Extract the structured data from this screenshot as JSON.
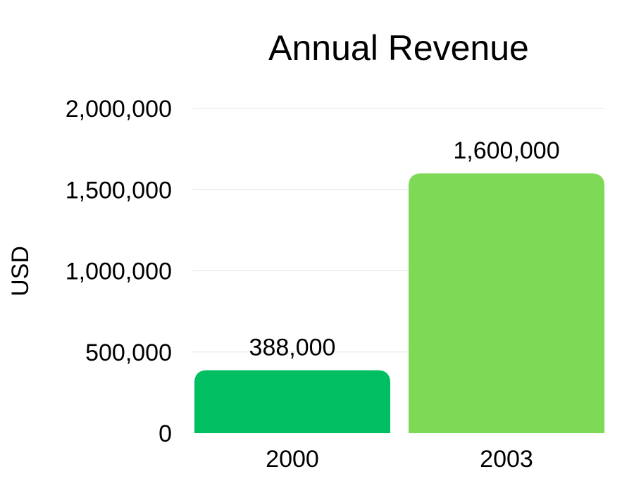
{
  "chart_data": {
    "type": "bar",
    "title": "Annual Revenue",
    "xlabel": "",
    "ylabel": "USD",
    "categories": [
      "2000",
      "2003"
    ],
    "values": [
      388000,
      1600000
    ],
    "data_labels": [
      "388,000",
      "1,600,000"
    ],
    "colors": [
      "#00bf63",
      "#7ed957"
    ],
    "ylim": [
      0,
      2000000
    ],
    "yticks": [
      0,
      500000,
      1000000,
      1500000,
      2000000
    ],
    "ytick_labels": [
      "0",
      "500,000",
      "1,000,000",
      "1,500,000",
      "2,000,000"
    ],
    "grid": true,
    "legend": "none"
  }
}
